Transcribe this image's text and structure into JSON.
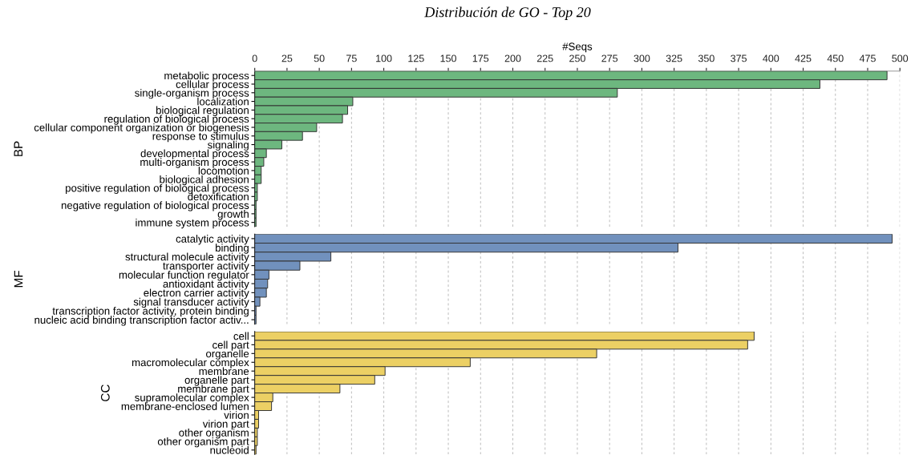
{
  "chart_data": [
    {
      "type": "bar",
      "orientation": "horizontal",
      "title": "Distribución de GO - Top 20",
      "xlabel": "#Seqs",
      "ylabel": "BP",
      "grid": "x",
      "xlim": [
        0,
        500
      ],
      "xticks": [
        0,
        25,
        50,
        75,
        100,
        125,
        150,
        175,
        200,
        225,
        250,
        275,
        300,
        325,
        350,
        375,
        400,
        425,
        450,
        475,
        500
      ],
      "categories": [
        "metabolic process",
        "cellular process",
        "single-organism process",
        "localization",
        "biological regulation",
        "regulation of biological process",
        "cellular component organization or biogenesis",
        "response to stimulus",
        "signaling",
        "developmental process",
        "multi-organism process",
        "locomotion",
        "biological adhesion",
        "positive regulation of biological process",
        "detoxification",
        "negative regulation of biological process",
        "growth",
        "immune system process"
      ],
      "series": [
        {
          "color": "#6db77f",
          "values": [
            490,
            438,
            281,
            76,
            72,
            68,
            48,
            37,
            21,
            9,
            7,
            5,
            5,
            2,
            2,
            1,
            1,
            1
          ]
        }
      ]
    },
    {
      "type": "bar",
      "orientation": "horizontal",
      "ylabel": "MF",
      "grid": "x",
      "tick_labels": "y",
      "xlim": [
        0,
        500
      ],
      "xticks": [
        0,
        25,
        50,
        75,
        100,
        125,
        150,
        175,
        200,
        225,
        250,
        275,
        300,
        325,
        350,
        375,
        400,
        425,
        450,
        475,
        500
      ],
      "categories": [
        "catalytic activity",
        "binding",
        "structural molecule activity",
        "transporter activity",
        "molecular function regulator",
        "antioxidant activity",
        "electron carrier activity",
        "signal transducer activity",
        "transcription factor activity, protein binding",
        "nucleic acid binding transcription factor activ..."
      ],
      "series": [
        {
          "color": "#7191bd",
          "values": [
            494,
            328,
            59,
            35,
            11,
            10,
            9,
            4,
            1,
            1
          ]
        }
      ]
    },
    {
      "type": "bar",
      "orientation": "horizontal",
      "ylabel": "CC",
      "grid": "x",
      "tick_labels": "y",
      "xlim": [
        0,
        500
      ],
      "xticks": [
        0,
        25,
        50,
        75,
        100,
        125,
        150,
        175,
        200,
        225,
        250,
        275,
        300,
        325,
        350,
        375,
        400,
        425,
        450,
        475,
        500
      ],
      "categories": [
        "cell",
        "cell part",
        "organelle",
        "macromolecular complex",
        "membrane",
        "organelle part",
        "membrane part",
        "supramolecular complex",
        "membrane-enclosed lumen",
        "virion",
        "virion part",
        "other organism",
        "other organism part",
        "nucleoid"
      ],
      "series": [
        {
          "color": "#ecd064",
          "values": [
            387,
            382,
            265,
            167,
            101,
            93,
            66,
            14,
            13,
            3,
            3,
            2,
            2,
            1
          ]
        }
      ]
    }
  ]
}
